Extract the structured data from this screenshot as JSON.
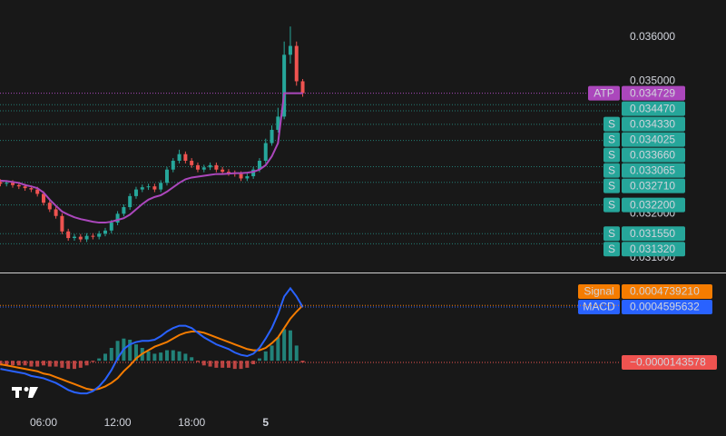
{
  "chart_data": [
    {
      "type": "candlestick",
      "x": [
        2.5,
        3,
        3.5,
        4,
        4.5,
        5,
        5.5,
        6,
        6.5,
        7,
        7.5,
        8,
        8.5,
        9,
        9.5,
        10,
        10.5,
        11,
        11.5,
        12,
        12.5,
        13,
        13.5,
        14,
        14.5,
        15,
        15.5,
        16,
        16.5,
        17,
        17.5,
        18,
        18.5,
        19,
        19.5,
        20,
        20.5,
        21,
        21.5,
        22,
        22.5,
        23,
        23.5,
        24,
        24.5,
        25,
        25.5,
        26,
        26.5,
        27
      ],
      "xlim": [
        2.47,
        52.7
      ],
      "open": [
        0.03272,
        0.03268,
        0.0327,
        0.03265,
        0.03262,
        0.03258,
        0.03255,
        0.03245,
        0.03225,
        0.0321,
        0.03195,
        0.0316,
        0.03145,
        0.03148,
        0.03142,
        0.0315,
        0.03148,
        0.03155,
        0.03162,
        0.0318,
        0.032,
        0.03215,
        0.0324,
        0.03255,
        0.0326,
        0.03262,
        0.03255,
        0.0327,
        0.033,
        0.0332,
        0.03335,
        0.0332,
        0.0331,
        0.033,
        0.03305,
        0.0331,
        0.033,
        0.03295,
        0.03292,
        0.0329,
        0.0328,
        0.03285,
        0.033,
        0.0332,
        0.0336,
        0.0339,
        0.0342,
        0.0356,
        0.0358,
        0.035
      ],
      "high": [
        0.03278,
        0.03276,
        0.03276,
        0.03271,
        0.03268,
        0.03264,
        0.03261,
        0.03251,
        0.03231,
        0.03216,
        0.03201,
        0.03166,
        0.03154,
        0.03154,
        0.03156,
        0.03156,
        0.03161,
        0.03168,
        0.03186,
        0.03206,
        0.03221,
        0.03246,
        0.03261,
        0.03266,
        0.03268,
        0.03268,
        0.03276,
        0.03306,
        0.03326,
        0.03345,
        0.03341,
        0.03326,
        0.03316,
        0.03311,
        0.03316,
        0.03316,
        0.03306,
        0.03301,
        0.03298,
        0.03296,
        0.03291,
        0.03306,
        0.03326,
        0.0337,
        0.034,
        0.0344,
        0.0359,
        0.03624,
        0.0359,
        0.03505
      ],
      "low": [
        0.03262,
        0.03262,
        0.03259,
        0.03256,
        0.03252,
        0.03249,
        0.03239,
        0.03219,
        0.03204,
        0.03189,
        0.03154,
        0.03139,
        0.03139,
        0.03136,
        0.03136,
        0.03142,
        0.03142,
        0.03149,
        0.03156,
        0.03174,
        0.03194,
        0.03209,
        0.03234,
        0.03249,
        0.03254,
        0.03249,
        0.03249,
        0.03264,
        0.03294,
        0.03314,
        0.03314,
        0.03304,
        0.03294,
        0.03294,
        0.03299,
        0.03294,
        0.03289,
        0.03286,
        0.03284,
        0.03274,
        0.03274,
        0.03279,
        0.03294,
        0.03314,
        0.03354,
        0.03384,
        0.03414,
        0.0354,
        0.0349,
        0.03465
      ],
      "close": [
        0.03268,
        0.0327,
        0.03265,
        0.03262,
        0.03258,
        0.03255,
        0.03245,
        0.03225,
        0.0321,
        0.03195,
        0.0316,
        0.03145,
        0.03148,
        0.03142,
        0.0315,
        0.03148,
        0.03155,
        0.03162,
        0.0318,
        0.032,
        0.03215,
        0.0324,
        0.03255,
        0.0326,
        0.03262,
        0.03255,
        0.0327,
        0.033,
        0.0332,
        0.03335,
        0.0332,
        0.0331,
        0.033,
        0.03305,
        0.0331,
        0.033,
        0.03295,
        0.03292,
        0.0329,
        0.0328,
        0.03285,
        0.033,
        0.0332,
        0.0336,
        0.0339,
        0.0342,
        0.0356,
        0.0358,
        0.035,
        0.03473
      ],
      "up_color": "#26a69a",
      "down_color": "#ef5350",
      "series": [
        {
          "name": "ATP",
          "color": "#ab47bc",
          "values": [
            0.03275,
            0.03274,
            0.03272,
            0.0327,
            0.03265,
            0.03262,
            0.03258,
            0.03248,
            0.03232,
            0.03218,
            0.03205,
            0.03198,
            0.03192,
            0.03188,
            0.03185,
            0.03182,
            0.0318,
            0.0318,
            0.03182,
            0.03186,
            0.0319,
            0.03198,
            0.0321,
            0.03222,
            0.03232,
            0.03238,
            0.03242,
            0.0325,
            0.0326,
            0.0327,
            0.03278,
            0.03282,
            0.03284,
            0.03286,
            0.03288,
            0.0329,
            0.0329,
            0.03291,
            0.03292,
            0.03292,
            0.03293,
            0.03295,
            0.033,
            0.0331,
            0.0333,
            0.0336,
            0.034729,
            0.034729,
            0.034729,
            0.034729
          ]
        }
      ],
      "ylim": [
        0.03067,
        0.03684
      ],
      "yticks": [
        {
          "value": 0.036,
          "label": "0.036000"
        },
        {
          "value": 0.035,
          "label": "0.035000"
        },
        {
          "value": 0.032,
          "label": "0.032000"
        },
        {
          "value": 0.031,
          "label": "0.031000"
        }
      ],
      "levels": [
        {
          "value": 0.03447,
          "label": "0.034470"
        },
        {
          "value": 0.03433,
          "label": "0.034330",
          "tag": "S"
        },
        {
          "value": 0.034025,
          "label": "0.034025",
          "tag": "S"
        },
        {
          "value": 0.03366,
          "label": "0.033660",
          "tag": "S"
        },
        {
          "value": 0.033065,
          "label": "0.033065",
          "tag": "S"
        },
        {
          "value": 0.03271,
          "label": "0.032710",
          "tag": "S"
        },
        {
          "value": 0.0322,
          "label": "0.032200",
          "tag": "S"
        },
        {
          "value": 0.03155,
          "label": "0.031550",
          "tag": "S"
        },
        {
          "value": 0.03132,
          "label": "0.031320",
          "tag": "S"
        }
      ],
      "level_color": "#26a69a"
    },
    {
      "type": "macd",
      "x": [
        2.5,
        3,
        3.5,
        4,
        4.5,
        5,
        5.5,
        6,
        6.5,
        7,
        7.5,
        8,
        8.5,
        9,
        9.5,
        10,
        10.5,
        11,
        11.5,
        12,
        12.5,
        13,
        13.5,
        14,
        14.5,
        15,
        15.5,
        16,
        16.5,
        17,
        17.5,
        18,
        18.5,
        19,
        19.5,
        20,
        20.5,
        21,
        21.5,
        22,
        22.5,
        23,
        23.5,
        24,
        24.5,
        25,
        25.5,
        26,
        26.5,
        27
      ],
      "xlim": [
        2.47,
        52.7
      ],
      "xticks": [
        {
          "value": 6,
          "label": "06:00"
        },
        {
          "value": 12,
          "label": "12:00"
        },
        {
          "value": 18,
          "label": "18:00"
        },
        {
          "value": 24,
          "label": "5"
        }
      ],
      "ylim": [
        -0.00045,
        0.00074
      ],
      "histogram": {
        "up_color": "#26a69a",
        "down_color": "#ef5350",
        "values": [
          -4e-05,
          -4e-05,
          -4e-05,
          -4e-05,
          -4e-05,
          -5e-05,
          -5e-05,
          -4e-05,
          -5e-05,
          -5e-05,
          -6e-05,
          -7e-05,
          -7e-05,
          -6e-05,
          -4e-05,
          -1e-05,
          2e-05,
          6e-05,
          0.00011,
          0.00017,
          0.00019,
          0.00018,
          0.00014,
          0.00011,
          8e-05,
          6e-05,
          7e-05,
          9e-05,
          9e-05,
          8e-05,
          6e-05,
          3e-05,
          -1e-05,
          -4e-05,
          -5e-05,
          -6e-05,
          -6e-05,
          -6e-05,
          -7e-05,
          -7e-05,
          -6e-05,
          -3e-05,
          2e-05,
          8e-05,
          0.00013,
          0.0002,
          0.00027,
          0.00026,
          0.00013,
          -1.43578e-05
        ],
        "value_labels": [
          null,
          null,
          null,
          null,
          null,
          null,
          null,
          null,
          null,
          null,
          null,
          null,
          null,
          null,
          null,
          null,
          null,
          null,
          null,
          null,
          null,
          null,
          null,
          null,
          null,
          null,
          null,
          null,
          null,
          null,
          null,
          null,
          null,
          null,
          null,
          null,
          null,
          null,
          null,
          null,
          null,
          null,
          null,
          null,
          null,
          null,
          null,
          null,
          null,
          "−0.0000143578"
        ]
      },
      "series": [
        {
          "name": "Signal",
          "color": "#f57c00",
          "values": [
            -3e-05,
            -4e-05,
            -5e-05,
            -6e-05,
            -7e-05,
            -8e-05,
            -9e-05,
            -0.00011,
            -0.00012,
            -0.00014,
            -0.00016,
            -0.00018,
            -0.0002,
            -0.00022,
            -0.00024,
            -0.00025,
            -0.00024,
            -0.00022,
            -0.00019,
            -0.00015,
            -9e-05,
            -4e-05,
            2e-05,
            6e-05,
            9e-05,
            0.00012,
            0.00014,
            0.00016,
            0.00019,
            0.00022,
            0.00024,
            0.00025,
            0.00025,
            0.00024,
            0.00022,
            0.0002,
            0.00018,
            0.00016,
            0.00014,
            0.00012,
            0.0001,
            9e-05,
            9e-05,
            0.00011,
            0.00015,
            0.0002,
            0.00028,
            0.00036,
            0.00042,
            0.000473921
          ],
          "value_labels": [
            null,
            null,
            null,
            null,
            null,
            null,
            null,
            null,
            null,
            null,
            null,
            null,
            null,
            null,
            null,
            null,
            null,
            null,
            null,
            null,
            null,
            null,
            null,
            null,
            null,
            null,
            null,
            null,
            null,
            null,
            null,
            null,
            null,
            null,
            null,
            null,
            null,
            null,
            null,
            null,
            null,
            null,
            null,
            null,
            null,
            null,
            null,
            null,
            null,
            "0.0004739210"
          ]
        },
        {
          "name": "MACD",
          "color": "#2962ff",
          "values": [
            -7e-05,
            -8e-05,
            -9e-05,
            -0.0001,
            -0.00011,
            -0.00013,
            -0.00014,
            -0.00015,
            -0.00017,
            -0.00019,
            -0.00022,
            -0.00025,
            -0.00027,
            -0.00028,
            -0.00028,
            -0.00026,
            -0.00022,
            -0.00016,
            -8e-05,
            2e-05,
            0.0001,
            0.00014,
            0.00016,
            0.00017,
            0.00017,
            0.00018,
            0.00021,
            0.00025,
            0.00028,
            0.0003,
            0.0003,
            0.00028,
            0.00024,
            0.0002,
            0.00017,
            0.00014,
            0.00012,
            0.0001,
            7e-05,
            5e-05,
            4e-05,
            6e-05,
            0.00011,
            0.00019,
            0.00028,
            0.0004,
            0.00055,
            0.00062,
            0.00055,
            0.0004595632
          ],
          "value_labels": [
            null,
            null,
            null,
            null,
            null,
            null,
            null,
            null,
            null,
            null,
            null,
            null,
            null,
            null,
            null,
            null,
            null,
            null,
            null,
            null,
            null,
            null,
            null,
            null,
            null,
            null,
            null,
            null,
            null,
            null,
            null,
            null,
            null,
            null,
            null,
            null,
            null,
            null,
            null,
            null,
            null,
            null,
            null,
            null,
            null,
            null,
            null,
            null,
            null,
            "0.0004595632"
          ]
        }
      ]
    }
  ]
}
